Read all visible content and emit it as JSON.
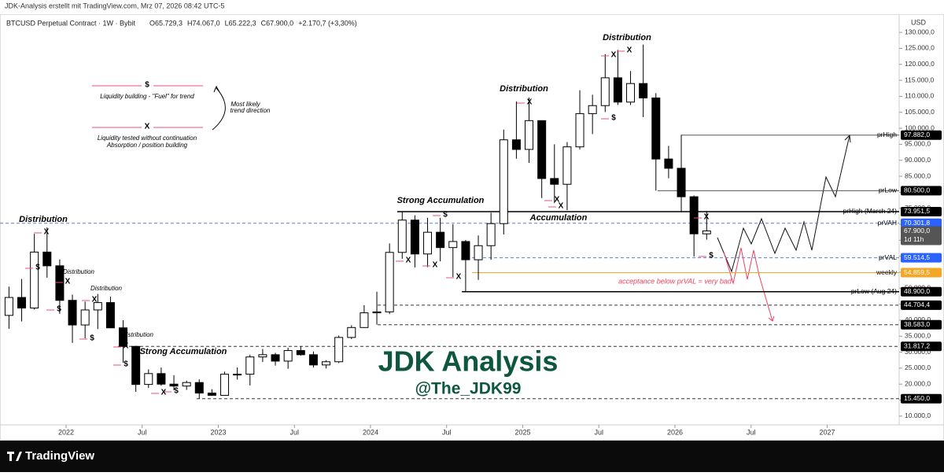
{
  "header": {
    "caption": "JDK-Analysis erstellt mit TradingView.com, Mrz 07, 2026 08:42 UTC-5",
    "symbol": "BTCUSD Perpetual Contract · 1W · Bybit",
    "ohlc": [
      "O65.729,3",
      "H74.067,0",
      "L65.222,3",
      "C67.900,0",
      "+2.170,7 (+3,30%)"
    ],
    "currency": "USD"
  },
  "chart_data": {
    "type": "candlestick",
    "x": [
      "2021-08",
      "2021-09",
      "2021-10",
      "2021-11",
      "2021-12",
      "2022-01",
      "2022-02",
      "2022-03",
      "2022-04",
      "2022-05",
      "2022-06",
      "2022-07",
      "2022-08",
      "2022-09",
      "2022-10",
      "2022-11",
      "2022-12",
      "2023-01",
      "2023-02",
      "2023-03",
      "2023-04",
      "2023-05",
      "2023-06",
      "2023-07",
      "2023-08",
      "2023-09",
      "2023-10",
      "2023-11",
      "2023-12",
      "2024-01",
      "2024-02",
      "2024-03",
      "2024-04",
      "2024-05",
      "2024-06",
      "2024-07",
      "2024-08",
      "2024-09",
      "2024-10",
      "2024-11",
      "2024-12",
      "2025-01",
      "2025-02",
      "2025-03",
      "2025-04",
      "2025-05",
      "2025-06",
      "2025-07",
      "2025-08",
      "2025-09",
      "2025-10",
      "2025-11",
      "2025-12",
      "2026-01",
      "2026-02",
      "2026-03"
    ],
    "open": [
      41500,
      47100,
      43800,
      61300,
      57000,
      46200,
      38500,
      43200,
      45500,
      37600,
      31800,
      19900,
      23300,
      20000,
      19400,
      20500,
      17200,
      16500,
      23100,
      23100,
      28500,
      29200,
      27200,
      30500,
      29200,
      26000,
      27000,
      34600,
      37700,
      42300,
      42600,
      61200,
      71300,
      60700,
      67500,
      62700,
      64600,
      58900,
      63300,
      70200,
      96400,
      93400,
      102400,
      84300,
      82500,
      94200,
      104600,
      107100,
      115800,
      108200,
      114000,
      109500,
      90400,
      87500,
      78600,
      67000
    ],
    "high": [
      50500,
      52900,
      67000,
      69000,
      59000,
      48000,
      45800,
      48200,
      47400,
      40000,
      31900,
      24600,
      25200,
      22800,
      21100,
      21500,
      18400,
      23900,
      25200,
      29200,
      31000,
      29800,
      31400,
      31800,
      30200,
      27500,
      35200,
      38400,
      44700,
      48900,
      64000,
      73900,
      72800,
      72000,
      72000,
      70000,
      65100,
      66500,
      73600,
      99600,
      108400,
      109600,
      102500,
      95000,
      95700,
      111900,
      110500,
      123200,
      124500,
      117900,
      126200,
      111000,
      94500,
      97900,
      79000,
      74100
    ],
    "low": [
      37300,
      39600,
      43300,
      53300,
      42000,
      32900,
      34300,
      37200,
      37600,
      26700,
      17600,
      18800,
      19500,
      18100,
      18200,
      15500,
      16300,
      16500,
      21400,
      19600,
      26900,
      25800,
      24800,
      28900,
      25200,
      24900,
      26600,
      34100,
      37600,
      38600,
      41900,
      59200,
      56500,
      56600,
      58400,
      53500,
      48900,
      52600,
      58900,
      66800,
      90500,
      89200,
      78200,
      76600,
      74400,
      93400,
      98200,
      105100,
      107300,
      107300,
      103500,
      80500,
      84400,
      74000,
      59900,
      65200
    ],
    "close": [
      47100,
      43800,
      61300,
      57000,
      46200,
      38500,
      43200,
      45500,
      37600,
      31800,
      19900,
      23300,
      20000,
      19400,
      20500,
      17200,
      16500,
      23100,
      23100,
      28500,
      29200,
      27200,
      30500,
      29200,
      26000,
      27000,
      34600,
      37700,
      42300,
      42600,
      61200,
      71300,
      60700,
      67500,
      62700,
      64600,
      58900,
      63300,
      70200,
      96400,
      93400,
      102400,
      84300,
      82500,
      94200,
      104600,
      107100,
      115800,
      108200,
      114000,
      109500,
      90400,
      87500,
      78600,
      67000,
      67900
    ],
    "up_color": "#ffffff",
    "down_color": "#000000",
    "xlim": [
      2021.566,
      2027.473
    ],
    "xticks": [
      2022,
      {
        "value": 2022.5,
        "label": "Jul"
      },
      2023,
      {
        "value": 2023.5,
        "label": "Jul"
      },
      2024,
      {
        "value": 2024.5,
        "label": "Jul"
      },
      2025,
      {
        "value": 2025.5,
        "label": "Jul"
      },
      2026,
      {
        "value": 2026.5,
        "label": "Jul"
      },
      2027
    ],
    "ylim": [
      8000,
      132500
    ],
    "yticks": [
      {
        "value": 10000,
        "label": "10.000,0"
      },
      {
        "value": 15000,
        "label": "15.000,0"
      },
      {
        "value": 20000,
        "label": "20.000,0"
      },
      {
        "value": 25000,
        "label": "25.000,0"
      },
      {
        "value": 30000,
        "label": "30.000,0"
      },
      {
        "value": 35000,
        "label": "35.000,0"
      },
      {
        "value": 40000,
        "label": "40.000,0"
      },
      {
        "value": 45000,
        "label": "45.000,0"
      },
      {
        "value": 50000,
        "label": "50.000,0"
      },
      {
        "value": 55000,
        "label": "55.000,0"
      },
      {
        "value": 60000,
        "label": "60.000,0"
      },
      {
        "value": 65000,
        "label": "65.000,0"
      },
      {
        "value": 70000,
        "label": "70.000,0"
      },
      {
        "value": 75000,
        "label": "75.000,0"
      },
      {
        "value": 80000,
        "label": "80.000,0"
      },
      {
        "value": 85000,
        "label": "85.000,0"
      },
      {
        "value": 90000,
        "label": "90.000,0"
      },
      {
        "value": 95000,
        "label": "95.000,0"
      },
      {
        "value": 100000,
        "label": "100.000,0"
      },
      {
        "value": 105000,
        "label": "105.000,0"
      },
      {
        "value": 110000,
        "label": "110.000,0"
      },
      {
        "value": 115000,
        "label": "115.000,0"
      },
      {
        "value": 120000,
        "label": "120.000,0"
      },
      {
        "value": 125000,
        "label": "125.000,0"
      },
      {
        "value": 130000,
        "label": "130.000,0"
      }
    ],
    "levels": [
      {
        "name": "prHigh",
        "value": 97882,
        "label": "97.882,0",
        "color": "#555555",
        "style": "solid",
        "badge": "#000000",
        "x_start": 2026.04
      },
      {
        "name": "prLow",
        "value": 80500,
        "label": "80.500,0",
        "color": "#555555",
        "style": "solid",
        "badge": "#000000",
        "x_start": 2025.886
      },
      {
        "name": "prHigh (March 24)",
        "value": 73951.5,
        "label": "73.951,5",
        "color": "#000000",
        "style": "solid",
        "badge": "#000000",
        "x_start": 2024.176
      },
      {
        "name": "prVAH",
        "value": 70301.8,
        "label": "70.301,8",
        "color": "#5b7fd6",
        "style": "dashed",
        "badge": "#2962ff",
        "x_start": 2021.566
      },
      {
        "value": 67900,
        "label": "67.900,0",
        "badge": "#555555",
        "note": "1d 11h"
      },
      {
        "name": "prVAL",
        "value": 59514.5,
        "label": "59.514,5",
        "color": "#5b7fd6",
        "style": "dashed",
        "badge": "#2962ff",
        "x_start": 2024.667
      },
      {
        "name": "weekly",
        "value": 54859.5,
        "label": "54.859,5",
        "color": "#f5a623",
        "style": "solid",
        "badge": "#f5a623",
        "x_start": 2024.667
      },
      {
        "name": "prLow (Aug 24)",
        "value": 48900,
        "label": "48.900,0",
        "color": "#000000",
        "style": "solid",
        "badge": "#000000",
        "x_start": 2024.6
      },
      {
        "value": 44704.4,
        "label": "44.704,4",
        "color": "#333333",
        "style": "dashed",
        "badge": "#000000",
        "x_start": 2024.047
      },
      {
        "value": 38583,
        "label": "38.583,0",
        "color": "#333333",
        "style": "dashed",
        "badge": "#000000",
        "x_start": 2024.047
      },
      {
        "value": 31817.2,
        "label": "31.817,2",
        "color": "#333333",
        "style": "dashed",
        "badge": "#000000",
        "x_start": 2022.341
      },
      {
        "value": 15450,
        "label": "15.450,0",
        "color": "#333333",
        "style": "dashed",
        "badge": "#000000",
        "x_start": 2022.858
      }
    ],
    "annotations": [
      "Distribution",
      "Distribution",
      "Distribution",
      "Distribution",
      "Strong Accumulation",
      "Strong Accumulation",
      "Accumulation",
      "Distribution",
      "Distribution",
      "acceptance below prVAL = very bad",
      "Liquidity building - \"Fuel\" for trend",
      "Liquidity tested without continuation",
      "Absorption / position building",
      "Most likely",
      "trend direction"
    ],
    "marks": {
      "fuel": "$",
      "tested": "X"
    },
    "watermark": {
      "title": "JDK Analysis",
      "handle": "@The_JDK99"
    }
  },
  "footer": {
    "brand": "TradingView"
  }
}
